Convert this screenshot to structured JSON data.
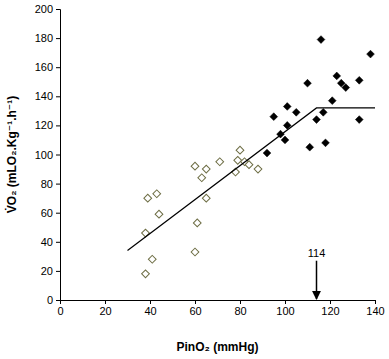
{
  "chart_data": {
    "type": "scatter",
    "x_label": "PinO₂ (mmHg)",
    "y_label": "V̇O₂ (mLO₂.Kg⁻¹.h⁻¹)",
    "xlim": [
      0,
      140
    ],
    "xticks": [
      0,
      20,
      40,
      60,
      80,
      100,
      120,
      140
    ],
    "ylim": [
      0,
      200
    ],
    "yticks": [
      0,
      20,
      40,
      60,
      80,
      100,
      120,
      140,
      160,
      180,
      200
    ],
    "grid": false,
    "series": [
      {
        "type": "scatter",
        "marker": "diamond-open",
        "color": "#6e6e45",
        "x": [
          38,
          41,
          38,
          39,
          43,
          44,
          60,
          60,
          61,
          63,
          65,
          65,
          71,
          78,
          79,
          80,
          82,
          84,
          88
        ],
        "values": [
          18,
          28,
          46,
          70,
          73,
          59,
          92,
          33,
          53,
          84,
          90,
          70,
          95,
          88,
          96,
          103,
          95,
          93,
          90
        ]
      },
      {
        "type": "scatter",
        "marker": "diamond",
        "color": "#000000",
        "x": [
          92,
          95,
          98,
          100,
          101,
          101,
          105,
          110,
          111,
          114,
          116,
          117,
          118,
          121,
          123,
          125,
          127,
          133,
          133,
          138
        ],
        "values": [
          101,
          126,
          114,
          110,
          120,
          133,
          129,
          149,
          105,
          124,
          179,
          129,
          108,
          137,
          154,
          149,
          146,
          124,
          151,
          169
        ]
      },
      {
        "type": "line",
        "line_style": "solid",
        "color": "#000000",
        "x": [
          30,
          114,
          140
        ],
        "values": [
          34,
          132,
          132
        ]
      }
    ],
    "annotations": [
      {
        "text": "114",
        "x": 114,
        "y_start": 27,
        "y_end": 0
      }
    ]
  }
}
